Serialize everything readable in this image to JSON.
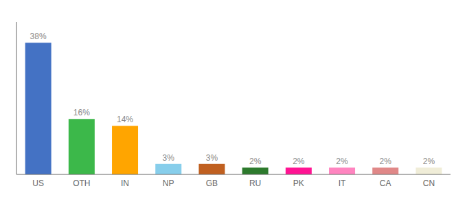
{
  "chart_data": {
    "type": "bar",
    "categories": [
      "US",
      "OTH",
      "IN",
      "NP",
      "GB",
      "RU",
      "PK",
      "IT",
      "CA",
      "CN"
    ],
    "values": [
      38,
      16,
      14,
      3,
      3,
      2,
      2,
      2,
      2,
      2
    ],
    "value_labels": [
      "38%",
      "16%",
      "14%",
      "3%",
      "3%",
      "2%",
      "2%",
      "2%",
      "2%",
      "2%"
    ],
    "colors": [
      "#4472C4",
      "#3CB84A",
      "#FFA500",
      "#87CEEB",
      "#C06020",
      "#2D7A2D",
      "#FF1493",
      "#FF85C0",
      "#E08888",
      "#F0EDD8"
    ],
    "ylim": [
      0,
      44
    ],
    "data_labels": true,
    "tick_labels": "x",
    "grid": false
  }
}
